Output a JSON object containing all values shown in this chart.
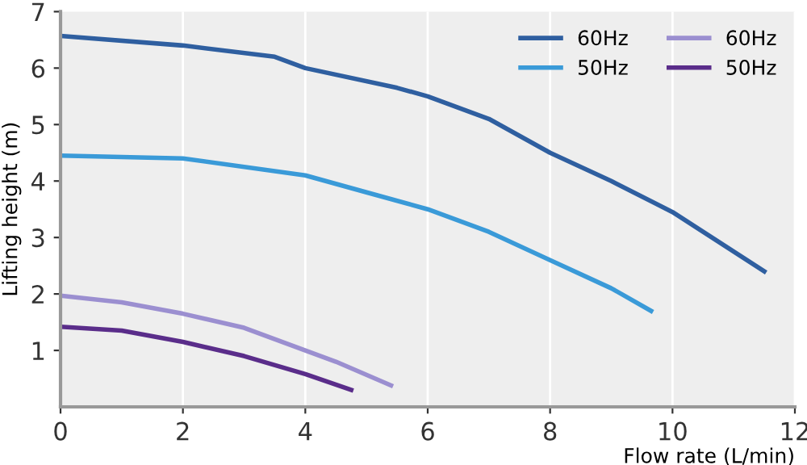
{
  "chart_data": {
    "type": "line",
    "xlabel": "Flow rate (L/min)",
    "ylabel": "Lifting height (m)",
    "xlim": [
      0,
      12
    ],
    "xticks": [
      0,
      2,
      4,
      6,
      8,
      10,
      12
    ],
    "ylim": [
      0,
      7
    ],
    "yticks": [
      1,
      2,
      3,
      4,
      5,
      6,
      7
    ],
    "grid": "x",
    "legend": "top right",
    "marker": "none",
    "line_style": "solid",
    "series": [
      {
        "name": "60Hz",
        "color": "#2f5fa0",
        "x": [
          0,
          2,
          3.5,
          4,
          5.5,
          6,
          7,
          8,
          9,
          10,
          11.5
        ],
        "values": [
          6.57,
          6.4,
          6.2,
          6.0,
          5.65,
          5.5,
          5.1,
          4.5,
          4.0,
          3.45,
          2.4
        ]
      },
      {
        "name": "50Hz",
        "color": "#3a9ad8",
        "x": [
          0,
          2,
          4,
          5,
          6,
          7,
          8,
          9,
          9.65
        ],
        "values": [
          4.45,
          4.4,
          4.1,
          3.8,
          3.5,
          3.1,
          2.6,
          2.1,
          1.7
        ]
      },
      {
        "name": "60Hz",
        "color": "#9b8fd0",
        "x": [
          0,
          1,
          2,
          3,
          4,
          4.5,
          5.4
        ],
        "values": [
          1.97,
          1.85,
          1.65,
          1.4,
          1.0,
          0.8,
          0.38
        ]
      },
      {
        "name": "50Hz",
        "color": "#5a2d8a",
        "x": [
          0,
          1,
          2,
          3,
          4,
          4.75
        ],
        "values": [
          1.42,
          1.35,
          1.15,
          0.9,
          0.58,
          0.3
        ]
      }
    ]
  }
}
